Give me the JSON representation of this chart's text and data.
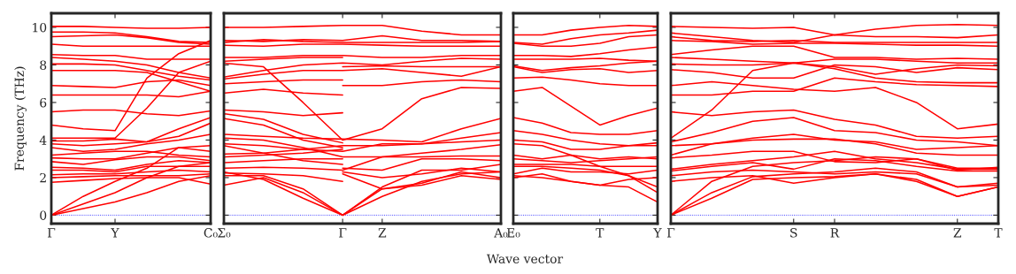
{
  "chart_data": [
    {
      "type": "line",
      "ylabel": "Frequency (THz)",
      "annotations": [
        "Wave vector"
      ],
      "ylim": [
        -0.45,
        10.75
      ],
      "yticks": [
        0,
        2,
        4,
        6,
        8,
        10
      ],
      "ref_lines": [
        {
          "axis": "y",
          "value": 0,
          "color": "#0000ff",
          "line_style": "dotted"
        }
      ],
      "categories": [
        "Γ",
        null,
        "Y",
        null,
        null,
        "C₀"
      ],
      "series": [
        {
          "color": "#ff0000",
          "values": [
            10.05,
            10.05,
            10.0,
            9.95,
            9.95,
            10.0
          ]
        },
        {
          "color": "#ff0000",
          "values": [
            9.75,
            9.75,
            9.7,
            9.5,
            9.25,
            9.2
          ]
        },
        {
          "color": "#ff0000",
          "values": [
            9.5,
            9.55,
            9.6,
            9.45,
            9.2,
            9.1
          ]
        },
        {
          "color": "#ff0000",
          "values": [
            9.1,
            9.0,
            9.0,
            9.0,
            9.0,
            9.0
          ]
        },
        {
          "color": "#ff0000",
          "values": [
            8.55,
            8.5,
            8.5,
            8.3,
            8.3,
            8.3
          ]
        },
        {
          "color": "#ff0000",
          "values": [
            8.4,
            8.3,
            8.2,
            8.0,
            7.6,
            7.3
          ]
        },
        {
          "color": "#ff0000",
          "values": [
            8.05,
            8.05,
            8.0,
            7.7,
            7.4,
            7.2
          ]
        },
        {
          "color": "#ff0000",
          "values": [
            7.7,
            7.7,
            7.7,
            7.6,
            7.1,
            6.6
          ]
        },
        {
          "color": "#ff0000",
          "values": [
            6.9,
            6.85,
            6.8,
            7.1,
            7.2,
            6.9
          ]
        },
        {
          "color": "#ff0000",
          "values": [
            6.4,
            6.4,
            6.4,
            6.4,
            6.3,
            6.6
          ]
        },
        {
          "color": "#ff0000",
          "values": [
            5.5,
            5.6,
            5.6,
            5.4,
            5.3,
            5.55
          ]
        },
        {
          "color": "#ff0000",
          "values": [
            4.8,
            4.6,
            4.5,
            7.3,
            8.6,
            9.3
          ]
        },
        {
          "color": "#ff0000",
          "values": [
            4.1,
            4.1,
            4.1,
            5.7,
            7.6,
            8.2
          ]
        },
        {
          "color": "#ff0000",
          "values": [
            3.95,
            3.95,
            4.05,
            3.9,
            4.6,
            5.2
          ]
        },
        {
          "color": "#ff0000",
          "values": [
            3.8,
            3.7,
            3.8,
            3.9,
            4.2,
            4.9
          ]
        },
        {
          "color": "#ff0000",
          "values": [
            3.6,
            3.4,
            3.5,
            3.8,
            4.0,
            4.3
          ]
        },
        {
          "color": "#ff0000",
          "values": [
            3.2,
            3.3,
            3.4,
            3.4,
            3.2,
            3.1
          ]
        },
        {
          "color": "#ff0000",
          "values": [
            3.05,
            3.0,
            3.0,
            3.3,
            3.6,
            3.4
          ]
        },
        {
          "color": "#ff0000",
          "values": [
            2.85,
            2.7,
            2.95,
            3.1,
            3.1,
            2.9
          ]
        },
        {
          "color": "#ff0000",
          "values": [
            2.55,
            2.5,
            2.4,
            2.7,
            2.9,
            2.8
          ]
        },
        {
          "color": "#ff0000",
          "values": [
            2.4,
            2.4,
            2.3,
            2.6,
            2.6,
            2.6
          ]
        },
        {
          "color": "#ff0000",
          "values": [
            2.15,
            2.2,
            2.2,
            2.3,
            2.4,
            2.3
          ]
        },
        {
          "color": "#ff0000",
          "values": [
            2.0,
            2.05,
            2.1,
            2.1,
            2.1,
            2.2
          ]
        },
        {
          "color": "#ff0000",
          "values": [
            1.75,
            1.85,
            1.95,
            2.0,
            2.0,
            1.65
          ]
        },
        {
          "color": "#ff0000",
          "values": [
            0,
            1.0,
            1.8,
            2.5,
            3.6,
            3.7
          ]
        },
        {
          "color": "#ff0000",
          "values": [
            0,
            0.6,
            1.2,
            2.0,
            2.6,
            2.8
          ]
        },
        {
          "color": "#ff0000",
          "values": [
            0,
            0.35,
            0.7,
            1.2,
            1.8,
            2.1
          ]
        }
      ]
    },
    {
      "type": "line",
      "tick_labels": "x",
      "ylim": [
        -0.45,
        10.75
      ],
      "yticks": [
        {
          "value": 0,
          "label": null
        },
        {
          "value": 2,
          "label": null
        },
        {
          "value": 4,
          "label": null
        },
        {
          "value": 6,
          "label": null
        },
        {
          "value": 8,
          "label": null
        },
        {
          "value": 10,
          "label": null
        }
      ],
      "ref_lines": [
        {
          "axis": "y",
          "value": 0,
          "color": "#0000ff",
          "line_style": "dotted"
        }
      ],
      "categories": [
        "Σ₀",
        null,
        null,
        "Γ",
        "Z",
        null,
        null,
        "A₀"
      ],
      "series": [
        {
          "color": "#ff0000",
          "values": [
            10.0,
            10.0,
            10.05,
            10.1,
            10.1,
            9.8,
            9.6,
            9.6
          ]
        },
        {
          "color": "#ff0000",
          "values": [
            9.3,
            9.25,
            9.35,
            9.3,
            9.55,
            9.3,
            9.3,
            9.25
          ]
        },
        {
          "color": "#ff0000",
          "values": [
            9.2,
            9.35,
            9.25,
            9.2,
            9.2,
            9.2,
            9.2,
            9.25
          ]
        },
        {
          "color": "#ff0000",
          "values": [
            9.05,
            9.0,
            9.1,
            9.1,
            9.05,
            9.0,
            9.0,
            9.0
          ]
        },
        {
          "color": "#ff0000",
          "values": [
            8.4,
            8.4,
            8.5,
            8.5,
            8.4,
            8.4,
            8.5,
            8.5
          ]
        },
        {
          "color": "#ff0000",
          "values": [
            7.35,
            7.7,
            8.0,
            8.1,
            8.0,
            8.2,
            8.35,
            8.3
          ]
        },
        {
          "color": "#ff0000",
          "values": [
            7.25,
            7.5,
            7.7,
            7.7,
            7.8,
            7.6,
            7.4,
            7.9
          ]
        },
        {
          "color": "#ff0000",
          "values": [
            8.1,
            7.9,
            6.0,
            4.0,
            4.6,
            6.2,
            6.8,
            6.75
          ]
        },
        {
          "color": "#ff0000",
          "values": [
            4.3,
            4.2,
            4.1,
            4.05,
            4.0,
            3.9,
            4.6,
            5.15
          ]
        },
        {
          "color": "#ff0000",
          "values": [
            3.25,
            3.3,
            3.5,
            3.7,
            3.7,
            3.8,
            4.1,
            4.4
          ]
        },
        {
          "color": "#ff0000",
          "values": [
            3.8,
            3.7,
            3.5,
            3.4,
            3.8,
            3.8,
            3.9,
            4.0
          ]
        },
        {
          "color": "#ff0000",
          "values": [
            4.1,
            4.0,
            3.6,
            3.1,
            3.1,
            3.3,
            3.5,
            3.75
          ]
        },
        {
          "color": "#ff0000",
          "values": [
            2.5,
            2.55,
            2.5,
            2.4,
            3.1,
            3.1,
            3.15,
            3.15
          ]
        },
        {
          "color": "#ff0000",
          "values": [
            2.1,
            2.1,
            1.4,
            0,
            1.5,
            2.4,
            2.4,
            2.7
          ]
        },
        {
          "color": "#ff0000",
          "values": [
            1.6,
            2.0,
            1.2,
            0,
            1.0,
            1.8,
            2.2,
            2.3
          ]
        },
        {
          "color": "#ff0000",
          "values": [
            2.3,
            1.9,
            0.9,
            0,
            1.4,
            1.6,
            2.1,
            1.9
          ]
        },
        {
          "color": "#ff0000",
          "values": [
            8.2,
            8.3,
            8.4,
            8.4,
            null,
            null,
            null,
            null
          ]
        },
        {
          "color": "#ff0000",
          "values": [
            7.0,
            7.1,
            7.2,
            7.2,
            null,
            null,
            null,
            null
          ]
        },
        {
          "color": "#ff0000",
          "values": [
            6.5,
            6.7,
            6.5,
            6.4,
            null,
            null,
            null,
            null
          ]
        },
        {
          "color": "#ff0000",
          "values": [
            5.6,
            5.5,
            5.3,
            5.45,
            null,
            null,
            null,
            null
          ]
        },
        {
          "color": "#ff0000",
          "values": [
            5.4,
            5.1,
            4.3,
            3.85,
            null,
            null,
            null,
            null
          ]
        },
        {
          "color": "#ff0000",
          "values": [
            5.15,
            4.8,
            4.0,
            3.6,
            null,
            null,
            null,
            null
          ]
        },
        {
          "color": "#ff0000",
          "values": [
            3.7,
            3.3,
            2.9,
            2.7,
            null,
            null,
            null,
            null
          ]
        },
        {
          "color": "#ff0000",
          "values": [
            3.1,
            3.2,
            3.3,
            3.5,
            null,
            null,
            null,
            null
          ]
        },
        {
          "color": "#ff0000",
          "values": [
            2.8,
            2.9,
            3.0,
            3.0,
            null,
            null,
            null,
            null
          ]
        },
        {
          "color": "#ff0000",
          "values": [
            2.25,
            2.2,
            2.1,
            1.8,
            null,
            null,
            null,
            null
          ]
        },
        {
          "color": "#ff0000",
          "values": [
            null,
            null,
            null,
            7.9,
            7.95,
            7.9,
            7.9,
            7.9
          ]
        },
        {
          "color": "#ff0000",
          "values": [
            null,
            null,
            null,
            6.9,
            6.9,
            7.1,
            7.2,
            7.1
          ]
        },
        {
          "color": "#ff0000",
          "values": [
            null,
            null,
            null,
            2.5,
            2.4,
            3.0,
            3.0,
            2.9
          ]
        },
        {
          "color": "#ff0000",
          "values": [
            null,
            null,
            null,
            2.3,
            2.0,
            2.2,
            2.5,
            2.3
          ]
        },
        {
          "color": "#ff0000",
          "values": [
            null,
            null,
            null,
            2.2,
            1.4,
            1.7,
            2.3,
            2.0
          ]
        }
      ]
    },
    {
      "type": "line",
      "tick_labels": "x",
      "ylim": [
        -0.45,
        10.75
      ],
      "yticks": [
        {
          "value": 0,
          "label": null
        },
        {
          "value": 2,
          "label": null
        },
        {
          "value": 4,
          "label": null
        },
        {
          "value": 6,
          "label": null
        },
        {
          "value": 8,
          "label": null
        },
        {
          "value": 10,
          "label": null
        }
      ],
      "ref_lines": [
        {
          "axis": "y",
          "value": 0,
          "color": "#0000ff",
          "line_style": "dotted"
        }
      ],
      "categories": [
        "E₀",
        null,
        null,
        "T",
        null,
        "Y"
      ],
      "series": [
        {
          "color": "#ff0000",
          "values": [
            9.6,
            9.6,
            9.85,
            10.0,
            10.1,
            10.05
          ]
        },
        {
          "color": "#ff0000",
          "values": [
            9.2,
            9.1,
            9.4,
            9.6,
            9.7,
            9.85
          ]
        },
        {
          "color": "#ff0000",
          "values": [
            9.15,
            9.0,
            9.0,
            9.15,
            9.5,
            9.6
          ]
        },
        {
          "color": "#ff0000",
          "values": [
            8.5,
            8.5,
            8.45,
            8.6,
            8.8,
            8.95
          ]
        },
        {
          "color": "#ff0000",
          "values": [
            8.3,
            8.3,
            8.3,
            8.35,
            8.25,
            8.2
          ]
        },
        {
          "color": "#ff0000",
          "values": [
            7.95,
            7.7,
            7.85,
            7.95,
            8.1,
            8.2
          ]
        },
        {
          "color": "#ff0000",
          "values": [
            7.9,
            7.6,
            7.75,
            7.8,
            7.6,
            7.7
          ]
        },
        {
          "color": "#ff0000",
          "values": [
            7.3,
            7.35,
            7.2,
            7.0,
            6.9,
            6.9
          ]
        },
        {
          "color": "#ff0000",
          "values": [
            6.6,
            6.8,
            5.8,
            4.8,
            5.3,
            5.7
          ]
        },
        {
          "color": "#ff0000",
          "values": [
            5.2,
            4.9,
            4.4,
            4.3,
            4.3,
            4.5
          ]
        },
        {
          "color": "#ff0000",
          "values": [
            4.5,
            4.3,
            4.0,
            3.8,
            3.7,
            3.7
          ]
        },
        {
          "color": "#ff0000",
          "values": [
            4.0,
            3.9,
            3.5,
            3.5,
            3.7,
            3.85
          ]
        },
        {
          "color": "#ff0000",
          "values": [
            3.8,
            3.7,
            3.2,
            2.6,
            2.1,
            1.5
          ]
        },
        {
          "color": "#ff0000",
          "values": [
            3.2,
            3.0,
            3.2,
            3.0,
            3.1,
            3.0
          ]
        },
        {
          "color": "#ff0000",
          "values": [
            3.0,
            2.9,
            2.8,
            2.9,
            3.0,
            3.1
          ]
        },
        {
          "color": "#ff0000",
          "values": [
            2.7,
            2.7,
            2.7,
            2.6,
            2.6,
            2.6
          ]
        },
        {
          "color": "#ff0000",
          "values": [
            2.6,
            2.6,
            2.5,
            2.4,
            2.1,
            1.2
          ]
        },
        {
          "color": "#ff0000",
          "values": [
            2.2,
            2.5,
            2.3,
            2.3,
            2.2,
            2.4
          ]
        },
        {
          "color": "#ff0000",
          "values": [
            2.0,
            2.2,
            1.8,
            1.6,
            1.9,
            2.0
          ]
        },
        {
          "color": "#ff0000",
          "values": [
            2.1,
            2.0,
            1.8,
            1.6,
            1.5,
            0.7
          ]
        }
      ]
    },
    {
      "type": "line",
      "tick_labels": "x",
      "ylim": [
        -0.45,
        10.75
      ],
      "yticks": [
        {
          "value": 0,
          "label": null
        },
        {
          "value": 2,
          "label": null
        },
        {
          "value": 4,
          "label": null
        },
        {
          "value": 6,
          "label": null
        },
        {
          "value": 8,
          "label": null
        },
        {
          "value": 10,
          "label": null
        }
      ],
      "ref_lines": [
        {
          "axis": "y",
          "value": 0,
          "color": "#0000ff",
          "line_style": "dotted"
        }
      ],
      "categories": [
        "Γ",
        null,
        null,
        "S",
        "R",
        null,
        null,
        "Z",
        "T"
      ],
      "series": [
        {
          "color": "#ff0000",
          "values": [
            10.05,
            10.0,
            9.95,
            10.0,
            9.6,
            9.9,
            10.1,
            10.15,
            10.1
          ]
        },
        {
          "color": "#ff0000",
          "values": [
            9.7,
            9.5,
            9.3,
            9.2,
            9.6,
            9.5,
            9.5,
            9.45,
            9.6
          ]
        },
        {
          "color": "#ff0000",
          "values": [
            9.5,
            9.3,
            9.25,
            9.3,
            9.2,
            9.2,
            9.2,
            9.2,
            9.2
          ]
        },
        {
          "color": "#ff0000",
          "values": [
            9.3,
            9.25,
            9.1,
            9.15,
            9.15,
            9.1,
            9.05,
            9.05,
            9.0
          ]
        },
        {
          "color": "#ff0000",
          "values": [
            8.55,
            8.8,
            9.0,
            9.0,
            8.4,
            8.4,
            8.3,
            8.35,
            8.3
          ]
        },
        {
          "color": "#ff0000",
          "values": [
            8.4,
            8.3,
            8.2,
            8.1,
            8.3,
            8.3,
            8.2,
            8.1,
            8.1
          ]
        },
        {
          "color": "#ff0000",
          "values": [
            8.05,
            8.0,
            8.0,
            8.1,
            7.9,
            7.5,
            7.8,
            8.0,
            7.95
          ]
        },
        {
          "color": "#ff0000",
          "values": [
            7.75,
            7.6,
            7.3,
            7.3,
            8.0,
            7.9,
            7.6,
            7.85,
            7.75
          ]
        },
        {
          "color": "#ff0000",
          "values": [
            6.9,
            7.1,
            6.9,
            6.7,
            6.6,
            6.8,
            6.0,
            4.6,
            4.85
          ]
        },
        {
          "color": "#ff0000",
          "values": [
            6.4,
            6.4,
            6.6,
            6.6,
            7.3,
            7.1,
            6.95,
            6.9,
            6.85
          ]
        },
        {
          "color": "#ff0000",
          "values": [
            5.5,
            5.3,
            5.5,
            5.6,
            5.1,
            4.8,
            4.2,
            4.1,
            4.2
          ]
        },
        {
          "color": "#ff0000",
          "values": [
            4.1,
            5.6,
            7.7,
            8.1,
            7.8,
            7.3,
            7.1,
            7.05,
            7.05
          ]
        },
        {
          "color": "#ff0000",
          "values": [
            3.9,
            4.4,
            5.0,
            5.2,
            4.5,
            4.4,
            4.0,
            3.9,
            3.7
          ]
        },
        {
          "color": "#ff0000",
          "values": [
            3.7,
            3.8,
            4.1,
            4.3,
            4.0,
            3.9,
            3.5,
            3.6,
            3.7
          ]
        },
        {
          "color": "#ff0000",
          "values": [
            3.2,
            3.8,
            4.0,
            4.05,
            4.05,
            3.8,
            3.3,
            3.2,
            3.2
          ]
        },
        {
          "color": "#ff0000",
          "values": [
            3.05,
            3.2,
            3.4,
            3.4,
            2.85,
            2.8,
            3.0,
            2.5,
            2.5
          ]
        },
        {
          "color": "#ff0000",
          "values": [
            2.45,
            2.7,
            2.9,
            3.1,
            3.4,
            3.0,
            2.8,
            2.45,
            2.45
          ]
        },
        {
          "color": "#ff0000",
          "values": [
            2.35,
            2.6,
            2.8,
            2.45,
            3.0,
            2.9,
            2.6,
            2.35,
            2.35
          ]
        },
        {
          "color": "#ff0000",
          "values": [
            2.1,
            2.3,
            2.4,
            2.3,
            2.2,
            2.3,
            2.2,
            1.5,
            1.6
          ]
        },
        {
          "color": "#ff0000",
          "values": [
            1.8,
            2.0,
            2.1,
            1.7,
            2.0,
            2.2,
            1.8,
            1.0,
            1.5
          ]
        },
        {
          "color": "#ff0000",
          "values": [
            0,
            1.2,
            2.05,
            2.2,
            2.3,
            2.5,
            2.3,
            1.5,
            1.7
          ]
        },
        {
          "color": "#ff0000",
          "values": [
            0,
            0.9,
            1.9,
            2.0,
            2.05,
            2.2,
            1.9,
            1.0,
            1.5
          ]
        },
        {
          "color": "#ff0000",
          "values": [
            0,
            1.8,
            2.6,
            2.8,
            2.9,
            3.1,
            3.0,
            2.4,
            2.55
          ]
        }
      ]
    }
  ]
}
